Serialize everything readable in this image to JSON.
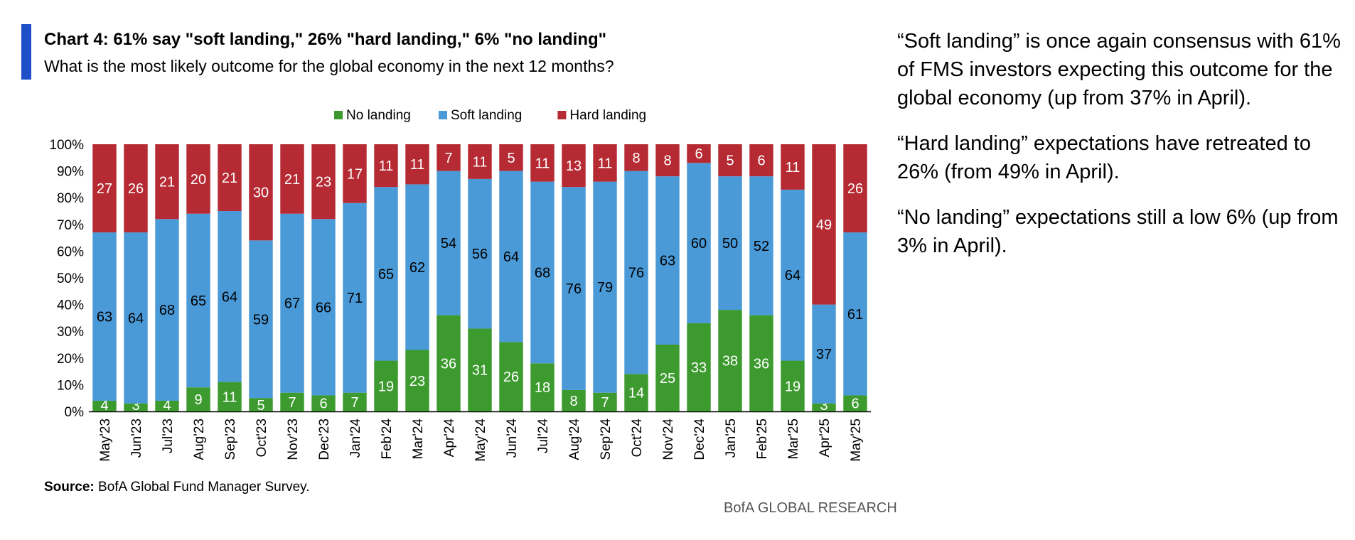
{
  "header": {
    "title": "Chart 4: 61% say \"soft landing,\" 26% \"hard landing,\" 6% \"no landing\"",
    "subtitle": "What is the most likely outcome for the global economy in the next 12 months?",
    "accent_color": "#1f4fc8"
  },
  "chart_data": {
    "type": "bar",
    "stacked": true,
    "title": "Chart 4: 61% say \"soft landing,\" 26% \"hard landing,\" 6% \"no landing\"",
    "subtitle": "What is the most likely outcome for the global economy in the next 12 months?",
    "xlabel": "",
    "ylabel": "",
    "ylim": [
      0,
      100
    ],
    "y_ticks": [
      "0%",
      "10%",
      "20%",
      "30%",
      "40%",
      "50%",
      "60%",
      "70%",
      "80%",
      "90%",
      "100%"
    ],
    "grid": false,
    "legend_position": "top-center",
    "categories": [
      "May'23",
      "Jun'23",
      "Jul'23",
      "Aug'23",
      "Sep'23",
      "Oct'23",
      "Nov'23",
      "Dec'23",
      "Jan'24",
      "Feb'24",
      "Mar'24",
      "Apr'24",
      "May'24",
      "Jun'24",
      "Jul'24",
      "Aug'24",
      "Sep'24",
      "Oct'24",
      "Nov'24",
      "Dec'24",
      "Jan'25",
      "Feb'25",
      "Mar'25",
      "Apr'25",
      "May'25"
    ],
    "series": [
      {
        "name": "No landing",
        "color": "#3d9a2f",
        "values": [
          4,
          3,
          4,
          9,
          11,
          5,
          7,
          6,
          7,
          19,
          23,
          36,
          31,
          26,
          18,
          8,
          7,
          14,
          25,
          33,
          38,
          36,
          19,
          3,
          6
        ]
      },
      {
        "name": "Soft landing",
        "color": "#4a9ad8",
        "values": [
          63,
          64,
          68,
          65,
          64,
          59,
          67,
          66,
          71,
          65,
          62,
          54,
          56,
          64,
          68,
          76,
          79,
          76,
          63,
          60,
          50,
          52,
          64,
          37,
          61
        ]
      },
      {
        "name": "Hard landing",
        "color": "#b52a33",
        "values": [
          27,
          26,
          21,
          20,
          21,
          30,
          21,
          23,
          17,
          11,
          11,
          7,
          11,
          5,
          11,
          13,
          11,
          8,
          8,
          6,
          5,
          6,
          11,
          49,
          26
        ]
      }
    ]
  },
  "commentary": [
    "“Soft landing” is once again consensus with 61% of FMS investors expecting this outcome for the global economy (up from 37% in April).",
    "“Hard landing” expectations have retreated to 26% (from 49% in April).",
    "“No landing” expectations still a low 6% (up from 3% in April)."
  ],
  "footer": {
    "source_label": "Source:",
    "source_text": " BofA Global Fund Manager Survey.",
    "brand": "BofA GLOBAL RESEARCH"
  }
}
